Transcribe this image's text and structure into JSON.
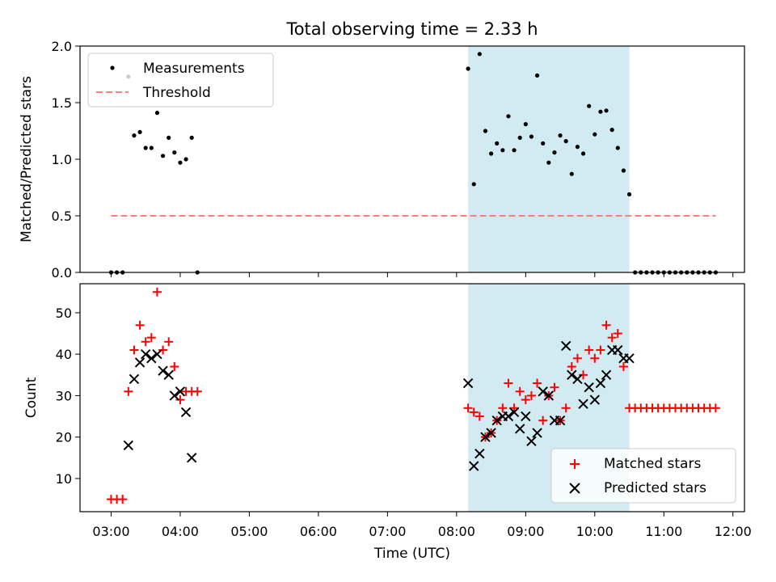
{
  "figure": {
    "title": "Total observing time = 2.33 h",
    "xlabel": "Time (UTC)",
    "xticks": [
      "03:00",
      "04:00",
      "05:00",
      "06:00",
      "07:00",
      "08:00",
      "09:00",
      "10:00",
      "11:00",
      "12:00"
    ]
  },
  "colors": {
    "measurement": "#000000",
    "threshold": "#ff7f7f",
    "matched": "#ff0000",
    "predicted": "#000000",
    "observing_span": "#add8e6"
  },
  "chart_data": [
    {
      "type": "scatter",
      "panel": "top",
      "ylabel": "Matched/Predicted stars",
      "xlim": [
        "02:33",
        "12:10"
      ],
      "ylim": [
        0,
        2.0
      ],
      "yticks": [
        "0.0",
        "0.5",
        "1.0",
        "1.5",
        "2.0"
      ],
      "legend_position": "upper left",
      "observing_span": [
        "08:10",
        "10:30"
      ],
      "threshold": {
        "name": "Threshold",
        "y": 0.5,
        "x": [
          "03:00",
          "11:45"
        ],
        "style": "dashed"
      },
      "series": [
        {
          "name": "Measurements",
          "marker": "dot",
          "x": [
            "03:00",
            "03:05",
            "03:10",
            "03:15",
            "03:20",
            "03:25",
            "03:30",
            "03:35",
            "03:40",
            "03:45",
            "03:50",
            "03:55",
            "04:00",
            "04:05",
            "04:10",
            "04:15",
            "08:10",
            "08:15",
            "08:20",
            "08:25",
            "08:30",
            "08:35",
            "08:40",
            "08:45",
            "08:50",
            "08:55",
            "09:00",
            "09:05",
            "09:10",
            "09:15",
            "09:20",
            "09:25",
            "09:30",
            "09:35",
            "09:40",
            "09:45",
            "09:50",
            "09:55",
            "10:00",
            "10:05",
            "10:10",
            "10:15",
            "10:20",
            "10:25",
            "10:30",
            "10:35",
            "10:40",
            "10:45",
            "10:50",
            "10:55",
            "11:00",
            "11:05",
            "11:10",
            "11:15",
            "11:20",
            "11:25",
            "11:30",
            "11:35",
            "11:40",
            "11:45"
          ],
          "y": [
            0,
            0,
            0,
            1.73,
            1.21,
            1.24,
            1.1,
            1.1,
            1.41,
            1.03,
            1.19,
            1.06,
            0.97,
            1.0,
            1.19,
            0,
            1.8,
            0.78,
            1.93,
            1.25,
            1.05,
            1.14,
            1.08,
            1.38,
            1.08,
            1.19,
            1.31,
            1.2,
            1.74,
            1.14,
            0.97,
            1.06,
            1.21,
            1.16,
            0.87,
            1.11,
            1.05,
            1.47,
            1.22,
            1.42,
            1.43,
            1.26,
            1.1,
            0.9,
            0.69,
            0,
            0,
            0,
            0,
            0,
            0,
            0,
            0,
            0,
            0,
            0,
            0,
            0,
            0,
            0
          ]
        }
      ]
    },
    {
      "type": "scatter",
      "panel": "bottom",
      "ylabel": "Count",
      "xlim": [
        "02:33",
        "12:10"
      ],
      "ylim": [
        2,
        57
      ],
      "yticks": [
        "10",
        "20",
        "30",
        "40",
        "50"
      ],
      "legend_position": "lower right",
      "observing_span": [
        "08:10",
        "10:30"
      ],
      "series": [
        {
          "name": "Matched stars",
          "marker": "plus",
          "x": [
            "03:00",
            "03:05",
            "03:10",
            "03:15",
            "03:20",
            "03:25",
            "03:30",
            "03:35",
            "03:40",
            "03:45",
            "03:50",
            "03:55",
            "04:00",
            "04:05",
            "04:10",
            "04:15",
            "08:10",
            "08:15",
            "08:20",
            "08:25",
            "08:30",
            "08:35",
            "08:40",
            "08:45",
            "08:50",
            "08:55",
            "09:00",
            "09:05",
            "09:10",
            "09:15",
            "09:20",
            "09:25",
            "09:30",
            "09:35",
            "09:40",
            "09:45",
            "09:50",
            "09:55",
            "10:00",
            "10:05",
            "10:10",
            "10:15",
            "10:20",
            "10:25",
            "10:30",
            "10:35",
            "10:40",
            "10:45",
            "10:50",
            "10:55",
            "11:00",
            "11:05",
            "11:10",
            "11:15",
            "11:20",
            "11:25",
            "11:30",
            "11:35",
            "11:40",
            "11:45"
          ],
          "y": [
            5,
            5,
            5,
            31,
            41,
            47,
            43,
            44,
            55,
            41,
            43,
            37,
            29,
            31,
            31,
            31,
            27,
            26,
            25,
            20,
            21,
            24,
            27,
            33,
            27,
            31,
            29,
            30,
            33,
            24,
            30,
            32,
            24,
            27,
            37,
            39,
            35,
            41,
            39,
            41,
            47,
            44,
            45,
            37,
            27,
            27,
            27,
            27,
            27,
            27,
            27,
            27,
            27,
            27,
            27,
            27,
            27,
            27,
            27,
            27
          ]
        },
        {
          "name": "Predicted stars",
          "marker": "x",
          "x": [
            "03:15",
            "03:20",
            "03:25",
            "03:30",
            "03:35",
            "03:40",
            "03:45",
            "03:50",
            "03:55",
            "04:00",
            "04:05",
            "04:10",
            "08:10",
            "08:15",
            "08:20",
            "08:25",
            "08:30",
            "08:35",
            "08:40",
            "08:45",
            "08:50",
            "08:55",
            "09:00",
            "09:05",
            "09:10",
            "09:15",
            "09:20",
            "09:25",
            "09:30",
            "09:35",
            "09:40",
            "09:45",
            "09:50",
            "09:55",
            "10:00",
            "10:05",
            "10:10",
            "10:15",
            "10:20",
            "10:25",
            "10:30"
          ],
          "y": [
            18,
            34,
            38,
            40,
            39,
            40,
            36,
            35,
            30,
            31,
            26,
            15,
            33,
            13,
            16,
            20,
            21,
            24,
            25,
            25,
            26,
            22,
            25,
            19,
            21,
            31,
            30,
            24,
            24,
            42,
            35,
            34,
            28,
            32,
            29,
            33,
            35,
            41,
            41,
            39,
            39
          ]
        }
      ]
    }
  ]
}
